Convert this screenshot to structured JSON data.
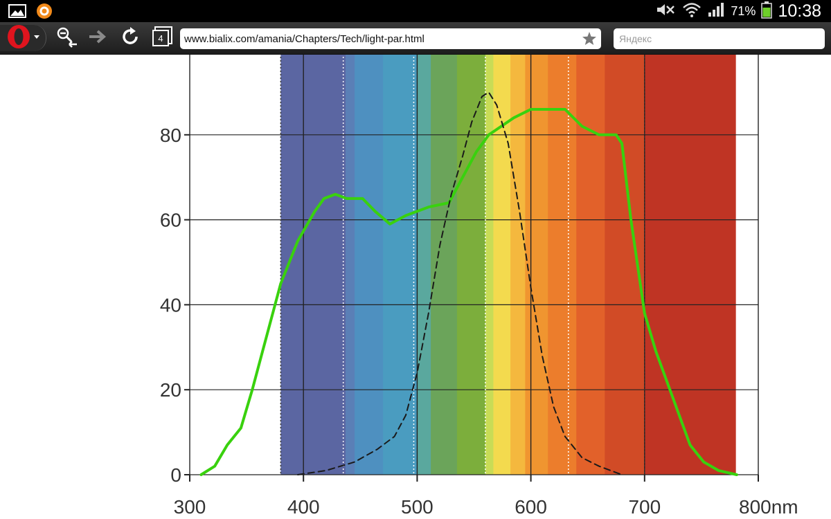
{
  "status_bar": {
    "battery_percent": "71%",
    "clock": "10:38",
    "icons": [
      "gallery-icon",
      "app-notification-icon",
      "mute-icon",
      "wifi-icon",
      "signal-icon",
      "battery-icon"
    ]
  },
  "browser": {
    "url": "www.bialix.com/amania/Chapters/Tech/light-par.html",
    "search_placeholder": "Яндекс",
    "tab_count": "4",
    "icons": [
      "opera-logo-icon",
      "zoom-out-icon",
      "forward-icon",
      "reload-icon",
      "tabs-icon",
      "bookmark-star-icon"
    ]
  },
  "chart_data": {
    "type": "line",
    "x_unit": "nm",
    "xlim": [
      300,
      800
    ],
    "ylim": [
      0,
      100
    ],
    "x_ticks": [
      "300",
      "400",
      "500",
      "600",
      "700",
      "800nm"
    ],
    "y_ticks": [
      "0",
      "20",
      "40",
      "60",
      "80"
    ],
    "grid": true,
    "background": "visible spectrum color bands from 380 to 780 nm",
    "series": [
      {
        "style": "solid",
        "color": "#39d10e",
        "points": [
          [
            310,
            0
          ],
          [
            322,
            2
          ],
          [
            333,
            7
          ],
          [
            345,
            11
          ],
          [
            355,
            20
          ],
          [
            365,
            30
          ],
          [
            380,
            45
          ],
          [
            395,
            55
          ],
          [
            410,
            62
          ],
          [
            418,
            65
          ],
          [
            428,
            66
          ],
          [
            438,
            65
          ],
          [
            452,
            65
          ],
          [
            463,
            62
          ],
          [
            476,
            59
          ],
          [
            490,
            61
          ],
          [
            510,
            63
          ],
          [
            528,
            64
          ],
          [
            540,
            70
          ],
          [
            552,
            76
          ],
          [
            563,
            80
          ],
          [
            574,
            82
          ],
          [
            585,
            84
          ],
          [
            600,
            86
          ],
          [
            618,
            86
          ],
          [
            630,
            86
          ],
          [
            645,
            82
          ],
          [
            660,
            80
          ],
          [
            675,
            80
          ],
          [
            680,
            78
          ],
          [
            688,
            60
          ],
          [
            700,
            38
          ],
          [
            710,
            29
          ],
          [
            725,
            18
          ],
          [
            740,
            7
          ],
          [
            752,
            3
          ],
          [
            765,
            1
          ],
          [
            781,
            0
          ]
        ]
      },
      {
        "style": "dashed",
        "color": "#1a1a1a",
        "points": [
          [
            395,
            0
          ],
          [
            420,
            1
          ],
          [
            445,
            3
          ],
          [
            465,
            6
          ],
          [
            480,
            9
          ],
          [
            490,
            14
          ],
          [
            500,
            24
          ],
          [
            510,
            38
          ],
          [
            520,
            54
          ],
          [
            530,
            66
          ],
          [
            540,
            75
          ],
          [
            548,
            83
          ],
          [
            557,
            89
          ],
          [
            563,
            90
          ],
          [
            570,
            87
          ],
          [
            580,
            78
          ],
          [
            590,
            62
          ],
          [
            600,
            44
          ],
          [
            610,
            28
          ],
          [
            620,
            16
          ],
          [
            630,
            9
          ],
          [
            645,
            4
          ],
          [
            660,
            2
          ],
          [
            680,
            0
          ]
        ]
      }
    ]
  }
}
